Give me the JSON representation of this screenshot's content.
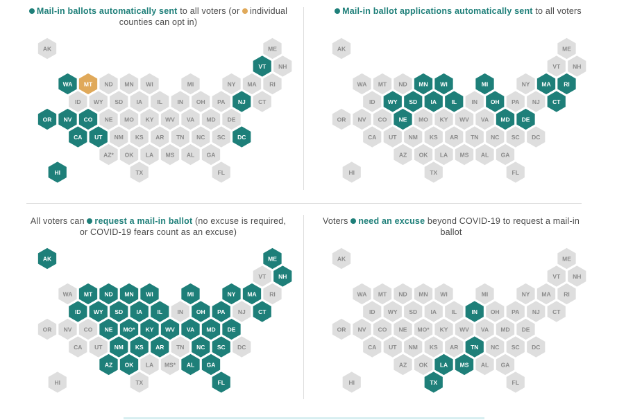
{
  "colors": {
    "teal": "#1e7f79",
    "gray": "#dedede",
    "orange": "#e0a95a",
    "label_dark": "#8a8a8a",
    "label_light": "#ffffff"
  },
  "panels": [
    {
      "id": "sent",
      "legend_parts": [
        {
          "text": "Mail-in ballots automatically sent",
          "bold": true,
          "dot": "teal"
        },
        {
          "text": " to all voters (or "
        },
        {
          "text": "individual counties can opt in)",
          "dot": "orange"
        }
      ],
      "teal": [
        "WA",
        "VT",
        "NJ",
        "OR",
        "NV",
        "CO",
        "CA",
        "UT",
        "DC",
        "HI"
      ],
      "orange": [
        "MT"
      ]
    },
    {
      "id": "applications",
      "legend_parts": [
        {
          "text": "Mail-in ballot applications automatically sent",
          "bold": true,
          "dot": "teal"
        },
        {
          "text": " to all voters"
        }
      ],
      "teal": [
        "MN",
        "WI",
        "MI",
        "MA",
        "RI",
        "WY",
        "SD",
        "IA",
        "IL",
        "OH",
        "CT",
        "NE",
        "MD",
        "DE"
      ],
      "orange": []
    },
    {
      "id": "request",
      "legend_parts": [
        {
          "text": "All voters can "
        },
        {
          "text": "request a mail-in ballot",
          "bold": true,
          "dot": "teal"
        },
        {
          "text": " (no excuse is required, or COVID-19 fears count as an excuse)"
        }
      ],
      "teal": [
        "AK",
        "ME",
        "NH",
        "MT",
        "ND",
        "MN",
        "WI",
        "MI",
        "NY",
        "MA",
        "ID",
        "WY",
        "SD",
        "IA",
        "IL",
        "OH",
        "PA",
        "CT",
        "NE",
        "MO*",
        "KY",
        "WV",
        "VA",
        "MD",
        "DE",
        "NM",
        "KS",
        "AR",
        "NC",
        "SC",
        "AZ",
        "OK",
        "AL",
        "GA",
        "FL"
      ],
      "orange": []
    },
    {
      "id": "excuse",
      "legend_parts": [
        {
          "text": "Voters "
        },
        {
          "text": "need an excuse",
          "bold": true,
          "dot": "teal"
        },
        {
          "text": " beyond COVID-19 to request a mail-in ballot"
        }
      ],
      "teal": [
        "IN",
        "TN",
        "LA",
        "MS",
        "TX"
      ],
      "orange": []
    }
  ],
  "states": [
    {
      "s": "AK",
      "r": 0,
      "c": 0
    },
    {
      "s": "ME",
      "r": 0,
      "c": 11
    },
    {
      "s": "VT",
      "r": 1,
      "c": 10
    },
    {
      "s": "NH",
      "r": 1,
      "c": 11
    },
    {
      "s": "WA",
      "r": 2,
      "c": 1
    },
    {
      "s": "MT",
      "r": 2,
      "c": 2
    },
    {
      "s": "ND",
      "r": 2,
      "c": 3
    },
    {
      "s": "MN",
      "r": 2,
      "c": 4
    },
    {
      "s": "WI",
      "r": 2,
      "c": 5
    },
    {
      "s": "MI",
      "r": 2,
      "c": 7
    },
    {
      "s": "NY",
      "r": 2,
      "c": 9
    },
    {
      "s": "MA",
      "r": 2,
      "c": 10
    },
    {
      "s": "RI",
      "r": 2,
      "c": 11
    },
    {
      "s": "ID",
      "r": 3,
      "c": 1
    },
    {
      "s": "WY",
      "r": 3,
      "c": 2
    },
    {
      "s": "SD",
      "r": 3,
      "c": 3
    },
    {
      "s": "IA",
      "r": 3,
      "c": 4
    },
    {
      "s": "IL",
      "r": 3,
      "c": 5
    },
    {
      "s": "IN",
      "r": 3,
      "c": 6
    },
    {
      "s": "OH",
      "r": 3,
      "c": 7
    },
    {
      "s": "PA",
      "r": 3,
      "c": 8
    },
    {
      "s": "NJ",
      "r": 3,
      "c": 9
    },
    {
      "s": "CT",
      "r": 3,
      "c": 10
    },
    {
      "s": "OR",
      "r": 4,
      "c": 0
    },
    {
      "s": "NV",
      "r": 4,
      "c": 1
    },
    {
      "s": "CO",
      "r": 4,
      "c": 2
    },
    {
      "s": "NE",
      "r": 4,
      "c": 3
    },
    {
      "s": "MO",
      "r": 4,
      "c": 4
    },
    {
      "s": "KY",
      "r": 4,
      "c": 5
    },
    {
      "s": "WV",
      "r": 4,
      "c": 6
    },
    {
      "s": "VA",
      "r": 4,
      "c": 7
    },
    {
      "s": "MD",
      "r": 4,
      "c": 8
    },
    {
      "s": "DE",
      "r": 4,
      "c": 9
    },
    {
      "s": "CA",
      "r": 5,
      "c": 1
    },
    {
      "s": "UT",
      "r": 5,
      "c": 2
    },
    {
      "s": "NM",
      "r": 5,
      "c": 3
    },
    {
      "s": "KS",
      "r": 5,
      "c": 4
    },
    {
      "s": "AR",
      "r": 5,
      "c": 5
    },
    {
      "s": "TN",
      "r": 5,
      "c": 6
    },
    {
      "s": "NC",
      "r": 5,
      "c": 7
    },
    {
      "s": "SC",
      "r": 5,
      "c": 8
    },
    {
      "s": "DC",
      "r": 5,
      "c": 9
    },
    {
      "s": "AZ*",
      "r": 6,
      "c": 3
    },
    {
      "s": "OK",
      "r": 6,
      "c": 4
    },
    {
      "s": "LA",
      "r": 6,
      "c": 5
    },
    {
      "s": "MS",
      "r": 6,
      "c": 6
    },
    {
      "s": "AL",
      "r": 6,
      "c": 7
    },
    {
      "s": "GA",
      "r": 6,
      "c": 8
    },
    {
      "s": "HI",
      "r": 7,
      "c": 0
    },
    {
      "s": "TX",
      "r": 7,
      "c": 4
    },
    {
      "s": "FL",
      "r": 7,
      "c": 8
    }
  ],
  "label_overrides": {
    "sent": {},
    "applications": {
      "AZ*": "AZ"
    },
    "request": {
      "AZ*": "AZ",
      "MO": "MO*",
      "MS": "MS*"
    },
    "excuse": {
      "AZ*": "AZ",
      "MO": "MO*"
    }
  }
}
